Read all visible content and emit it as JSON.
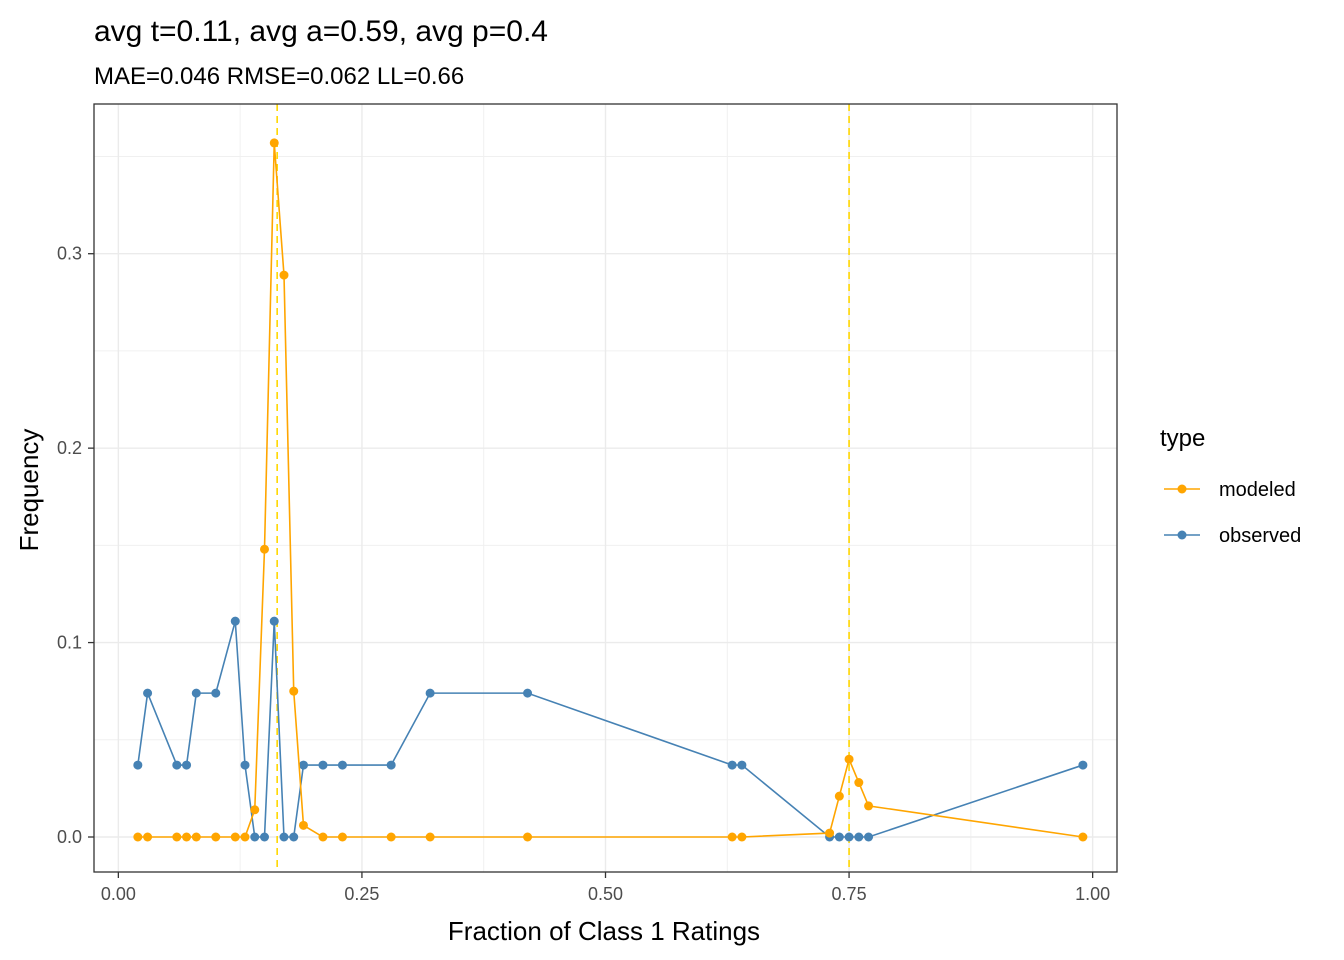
{
  "chart_data": {
    "type": "line",
    "title": "avg t=0.11, avg a=0.59, avg p=0.4",
    "subtitle": "MAE=0.046  RMSE=0.062  LL=0.66",
    "xlabel": "Fraction of Class 1 Ratings",
    "ylabel": "Frequency",
    "xlim": [
      -0.025,
      1.025
    ],
    "ylim": [
      -0.018,
      0.377
    ],
    "xticks": [
      0.0,
      0.25,
      0.5,
      0.75,
      1.0
    ],
    "xtick_labels": [
      "0.00",
      "0.25",
      "0.50",
      "0.75",
      "1.00"
    ],
    "yticks": [
      0.0,
      0.1,
      0.2,
      0.3
    ],
    "ytick_labels": [
      "0.0",
      "0.1",
      "0.2",
      "0.3"
    ],
    "grid": true,
    "legend": {
      "title": "type",
      "position": "right"
    },
    "vlines": [
      0.163,
      0.75
    ],
    "vline_color": "#FFD700",
    "series": [
      {
        "name": "modeled",
        "color": "#FFA500",
        "points": [
          [
            0.02,
            0.0
          ],
          [
            0.03,
            0.0
          ],
          [
            0.06,
            0.0
          ],
          [
            0.07,
            0.0
          ],
          [
            0.08,
            0.0
          ],
          [
            0.1,
            0.0
          ],
          [
            0.12,
            0.0
          ],
          [
            0.13,
            0.0
          ],
          [
            0.14,
            0.014
          ],
          [
            0.15,
            0.148
          ],
          [
            0.16,
            0.357
          ],
          [
            0.17,
            0.289
          ],
          [
            0.18,
            0.075
          ],
          [
            0.19,
            0.006
          ],
          [
            0.21,
            0.0
          ],
          [
            0.23,
            0.0
          ],
          [
            0.28,
            0.0
          ],
          [
            0.32,
            0.0
          ],
          [
            0.42,
            0.0
          ],
          [
            0.63,
            0.0
          ],
          [
            0.64,
            0.0
          ],
          [
            0.73,
            0.002
          ],
          [
            0.74,
            0.021
          ],
          [
            0.75,
            0.04
          ],
          [
            0.76,
            0.028
          ],
          [
            0.77,
            0.016
          ],
          [
            0.99,
            0.0
          ]
        ]
      },
      {
        "name": "observed",
        "color": "#4682B4",
        "points": [
          [
            0.02,
            0.037
          ],
          [
            0.03,
            0.074
          ],
          [
            0.06,
            0.037
          ],
          [
            0.07,
            0.037
          ],
          [
            0.08,
            0.074
          ],
          [
            0.1,
            0.074
          ],
          [
            0.12,
            0.111
          ],
          [
            0.13,
            0.037
          ],
          [
            0.14,
            0.0
          ],
          [
            0.15,
            0.0
          ],
          [
            0.16,
            0.111
          ],
          [
            0.17,
            0.0
          ],
          [
            0.18,
            0.0
          ],
          [
            0.19,
            0.037
          ],
          [
            0.21,
            0.037
          ],
          [
            0.23,
            0.037
          ],
          [
            0.28,
            0.037
          ],
          [
            0.32,
            0.074
          ],
          [
            0.42,
            0.074
          ],
          [
            0.63,
            0.037
          ],
          [
            0.64,
            0.037
          ],
          [
            0.73,
            0.0
          ],
          [
            0.74,
            0.0
          ],
          [
            0.75,
            0.0
          ],
          [
            0.76,
            0.0
          ],
          [
            0.77,
            0.0
          ],
          [
            0.99,
            0.037
          ]
        ]
      }
    ]
  }
}
